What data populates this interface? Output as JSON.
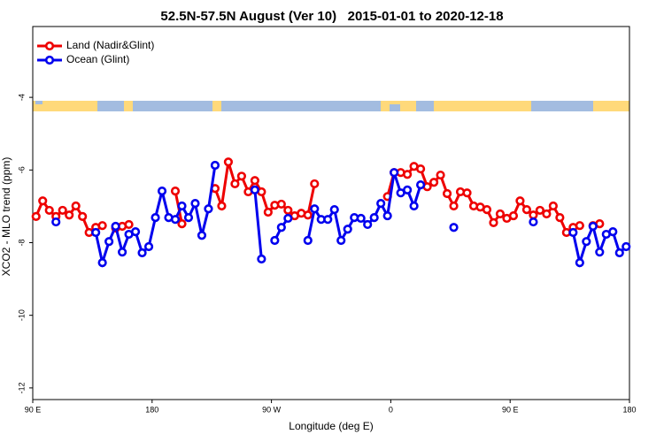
{
  "chart_data": {
    "type": "line",
    "title": "52.5N-57.5N August (Ver 10)   2015-01-01 to 2020-12-18",
    "x_label": "Longitude (deg E)",
    "y_label": "XCO2 - MLO trend (ppm)",
    "xlim": [
      90,
      540
    ],
    "ylim": [
      -12.32,
      -2.05
    ],
    "xticks": [
      {
        "value": 90,
        "label": "90 E"
      },
      180,
      {
        "value": 270,
        "label": "90 W"
      },
      {
        "value": 360,
        "label": "0"
      },
      {
        "value": 450,
        "label": "90 E"
      },
      {
        "value": 540,
        "label": "180"
      }
    ],
    "yticks": [
      -4,
      -6,
      -8,
      -10,
      -12
    ],
    "legend": "upper left",
    "x": [
      92.5,
      97.5,
      102.5,
      107.5,
      112.5,
      117.5,
      122.5,
      127.5,
      132.5,
      137.5,
      142.5,
      147.5,
      152.5,
      157.5,
      162.5,
      167.5,
      172.5,
      177.5,
      182.5,
      187.5,
      192.5,
      197.5,
      202.5,
      207.5,
      212.5,
      217.5,
      222.5,
      227.5,
      232.5,
      237.5,
      242.5,
      247.5,
      252.5,
      257.5,
      262.5,
      267.5,
      272.5,
      277.5,
      282.5,
      287.5,
      292.5,
      297.5,
      302.5,
      307.5,
      312.5,
      317.5,
      322.5,
      327.5,
      332.5,
      337.5,
      342.5,
      347.5,
      352.5,
      357.5,
      362.5,
      367.5,
      372.5,
      377.5,
      382.5,
      387.5,
      392.5,
      397.5,
      402.5,
      407.5,
      412.5,
      417.5,
      422.5,
      427.5,
      432.5,
      437.5,
      442.5,
      447.5,
      452.5,
      457.5,
      462.5,
      467.5,
      472.5,
      477.5,
      482.5,
      487.5,
      492.5,
      497.5,
      502.5,
      507.5,
      512.5,
      517.5,
      522.5,
      527.5,
      532.5,
      537.5
    ],
    "series": [
      {
        "name": "Land (Nadir&Glint)",
        "color": "#ee0000",
        "values": [
          -7.28,
          -6.85,
          -7.11,
          -7.28,
          -7.11,
          -7.24,
          -6.99,
          -7.28,
          -7.72,
          -7.58,
          -7.53,
          null,
          -7.6,
          -7.55,
          -7.5,
          null,
          null,
          null,
          null,
          null,
          null,
          -6.58,
          -7.48,
          null,
          null,
          null,
          null,
          -6.51,
          -6.99,
          -5.78,
          -6.38,
          -6.17,
          -6.6,
          -6.29,
          -6.6,
          -7.16,
          -6.97,
          -6.94,
          -7.11,
          -7.26,
          -7.19,
          -7.24,
          -6.38,
          null,
          null,
          null,
          null,
          null,
          null,
          null,
          null,
          null,
          null,
          -6.73,
          -6.07,
          -6.07,
          -6.12,
          -5.9,
          -5.97,
          -6.46,
          -6.34,
          -6.14,
          -6.65,
          -6.99,
          -6.6,
          -6.63,
          -6.99,
          -7.02,
          -7.09,
          -7.45,
          -7.21,
          -7.33,
          -7.26,
          -6.85,
          -7.09,
          -7.24,
          -7.11,
          -7.21,
          -6.99,
          -7.31,
          -7.72,
          -7.58,
          -7.53,
          null,
          -7.53,
          -7.48,
          null,
          null,
          null,
          null
        ]
      },
      {
        "name": "Ocean (Glint)",
        "color": "#0000ee",
        "values": [
          null,
          null,
          null,
          -7.43,
          null,
          null,
          null,
          null,
          null,
          -7.72,
          -8.55,
          -7.97,
          -7.55,
          -8.26,
          -7.77,
          -7.7,
          -8.28,
          -8.11,
          -7.31,
          -6.58,
          -7.31,
          -7.36,
          -6.99,
          -7.31,
          -6.92,
          -7.8,
          -7.07,
          -5.87,
          null,
          null,
          null,
          null,
          null,
          -6.55,
          -8.45,
          null,
          -7.94,
          -7.58,
          -7.33,
          null,
          null,
          -7.94,
          -7.07,
          -7.36,
          -7.36,
          -7.09,
          -7.94,
          -7.63,
          -7.31,
          -7.33,
          -7.5,
          -7.31,
          -6.92,
          -7.26,
          -6.07,
          -6.63,
          -6.55,
          -6.99,
          -6.41,
          null,
          null,
          null,
          null,
          -7.58,
          null,
          null,
          null,
          null,
          null,
          null,
          null,
          null,
          null,
          null,
          null,
          -7.43,
          null,
          null,
          null,
          null,
          null,
          -7.72,
          -8.55,
          -7.97,
          -7.55,
          -8.26,
          -7.77,
          -7.7,
          -8.28,
          -8.11
        ]
      }
    ]
  }
}
